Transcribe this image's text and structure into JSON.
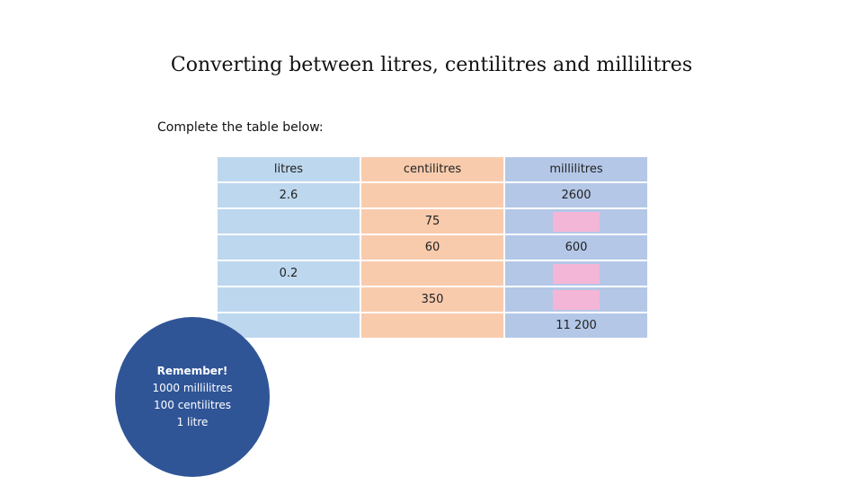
{
  "title": "Converting between litres, centilitres and millilitres",
  "instruction": "Complete the table below:",
  "table": {
    "headers": [
      "litres",
      "centilitres",
      "millilitres"
    ],
    "rows": [
      [
        "2.6",
        "",
        "2600"
      ],
      [
        "",
        "75",
        ""
      ],
      [
        "",
        "60",
        "600"
      ],
      [
        "0.2",
        "",
        ""
      ],
      [
        "",
        "350",
        ""
      ],
      [
        "",
        "",
        "11 200"
      ]
    ]
  },
  "remember": {
    "heading": "Remember!",
    "line1": "1000 millilitres",
    "line2": "100 centilitres",
    "line3": "1 litre"
  },
  "colors": {
    "litres_column": "#bdd7ee",
    "centilitres_column": "#f8cbad",
    "millilitres_column": "#b4c7e7",
    "answer_box": "#f4b6d6",
    "remember_circle": "#2f5597"
  }
}
